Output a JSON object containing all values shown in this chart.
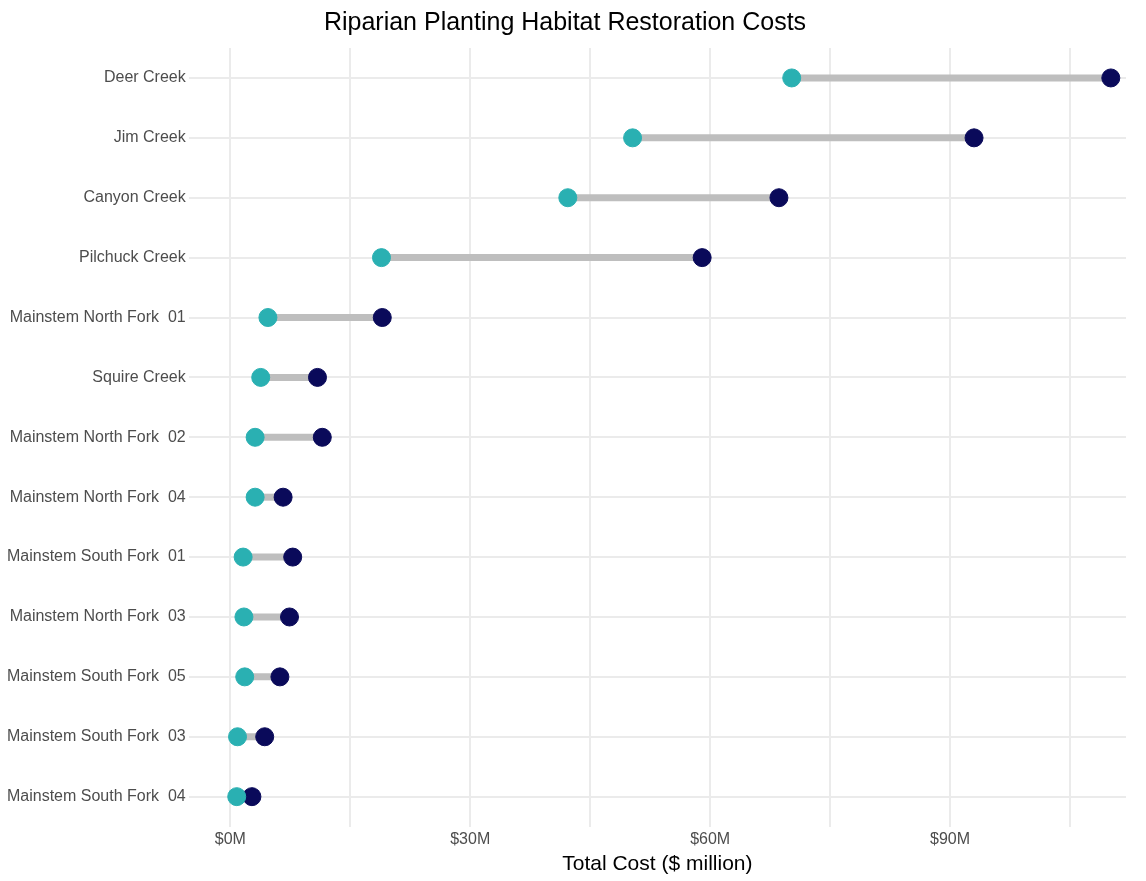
{
  "chart_data": {
    "type": "scatter",
    "orientation": "horizontal",
    "title": "Riparian Planting Habitat Restoration Costs",
    "xlabel": "Total Cost ($ million)",
    "categories": [
      "Deer Creek",
      "Jim Creek",
      "Canyon Creek",
      "Pilchuck Creek",
      "Mainstem North Fork  01",
      "Squire Creek",
      "Mainstem North Fork  02",
      "Mainstem North Fork  04",
      "Mainstem South Fork  01",
      "Mainstem North Fork  03",
      "Mainstem South Fork  05",
      "Mainstem South Fork  03",
      "Mainstem South Fork  04"
    ],
    "series": [
      {
        "color": "#2ab0b2",
        "values": [
          70.2,
          50.3,
          42.2,
          18.9,
          4.7,
          3.8,
          3.1,
          3.1,
          1.6,
          1.7,
          1.8,
          0.9,
          0.8
        ]
      },
      {
        "color": "#0a0a5a",
        "values": [
          110.1,
          93.0,
          68.6,
          59.0,
          19.0,
          10.9,
          11.5,
          6.6,
          7.8,
          7.4,
          6.2,
          4.3,
          2.7
        ]
      }
    ],
    "xlim": [
      -5.2,
      112
    ],
    "xticks": [
      {
        "value": 0,
        "label": "$0M"
      },
      {
        "value": 15,
        "label": null
      },
      {
        "value": 30,
        "label": "$30M"
      },
      {
        "value": 45,
        "label": null
      },
      {
        "value": 60,
        "label": "$60M"
      },
      {
        "value": 75,
        "label": null
      },
      {
        "value": 90,
        "label": "$90M"
      },
      {
        "value": 105,
        "label": null
      }
    ],
    "grid": true,
    "legend": false,
    "marker": "circle"
  }
}
